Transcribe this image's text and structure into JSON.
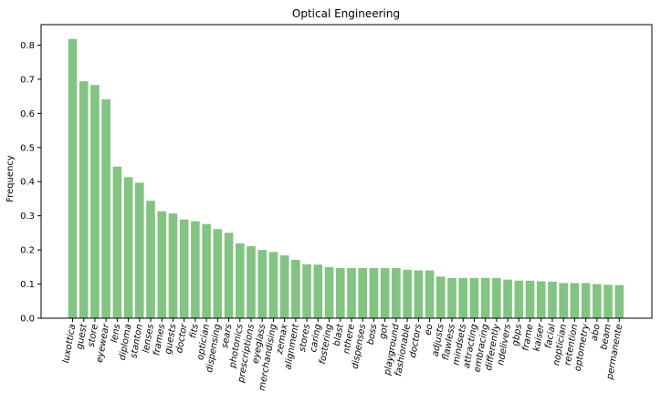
{
  "chart_data": {
    "type": "bar",
    "title": "Optical Engineering",
    "xlabel": "",
    "ylabel": "Frequency",
    "ylim": [
      0,
      0.86
    ],
    "yticks": [
      0.0,
      0.1,
      0.2,
      0.3,
      0.4,
      0.5,
      0.6,
      0.7,
      0.8
    ],
    "bar_color": "#82c482",
    "grid": false,
    "categories": [
      "luxottica",
      "guest",
      "store",
      "eyewear",
      "lens",
      "diploma",
      "stanton",
      "lenses",
      "frames",
      "guests",
      "doctor",
      "fits",
      "optician",
      "dispensing",
      "sears",
      "photonics",
      "prescriptions",
      "eyeglass",
      "merchandising",
      "zemax",
      "alignment",
      "stores",
      "caring",
      "fostering",
      "blast",
      "nthere",
      "dispenses",
      "boss",
      "got",
      "playground",
      "fashionable",
      "doctors",
      "eo",
      "adjusts",
      "flawless",
      "mindsets",
      "attracting",
      "embracing",
      "differently",
      "ndelivers",
      "gbps",
      "frame",
      "kaiser",
      "facial",
      "noptician",
      "retention",
      "optometry",
      "abo",
      "beam",
      "permanente"
    ],
    "values": [
      0.818,
      0.694,
      0.683,
      0.641,
      0.444,
      0.413,
      0.397,
      0.344,
      0.313,
      0.307,
      0.289,
      0.284,
      0.276,
      0.261,
      0.25,
      0.219,
      0.211,
      0.2,
      0.194,
      0.184,
      0.171,
      0.158,
      0.157,
      0.15,
      0.147,
      0.147,
      0.147,
      0.147,
      0.147,
      0.147,
      0.142,
      0.14,
      0.14,
      0.122,
      0.118,
      0.118,
      0.118,
      0.118,
      0.118,
      0.113,
      0.11,
      0.11,
      0.108,
      0.107,
      0.103,
      0.103,
      0.103,
      0.1,
      0.098,
      0.097
    ]
  }
}
